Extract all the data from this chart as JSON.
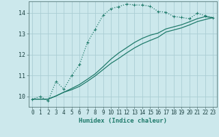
{
  "xlabel": "Humidex (Indice chaleur)",
  "bg_color": "#cce8ec",
  "grid_color": "#aacdd4",
  "line_color": "#1e7a6a",
  "xlim": [
    -0.5,
    23.5
  ],
  "ylim": [
    9.5,
    14.55
  ],
  "yticks": [
    10,
    11,
    12,
    13,
    14
  ],
  "xticks": [
    0,
    1,
    2,
    3,
    4,
    5,
    6,
    7,
    8,
    9,
    10,
    11,
    12,
    13,
    14,
    15,
    16,
    17,
    18,
    19,
    20,
    21,
    22,
    23
  ],
  "line1_x": [
    0,
    1,
    2,
    3,
    4,
    5,
    6,
    7,
    8,
    9,
    10,
    11,
    12,
    13,
    14,
    15,
    16,
    17,
    18,
    19,
    20,
    21,
    22,
    23
  ],
  "line1_y": [
    9.87,
    10.0,
    9.78,
    10.72,
    10.35,
    11.0,
    11.52,
    12.57,
    13.22,
    13.88,
    14.2,
    14.3,
    14.42,
    14.38,
    14.37,
    14.32,
    14.07,
    14.03,
    13.83,
    13.78,
    13.72,
    13.98,
    13.87,
    13.77
  ],
  "line2_x": [
    0,
    2,
    3,
    4,
    5,
    6,
    7,
    8,
    9,
    10,
    11,
    12,
    13,
    14,
    15,
    16,
    17,
    18,
    19,
    20,
    21,
    22,
    23
  ],
  "line2_y": [
    9.87,
    9.87,
    10.02,
    10.2,
    10.32,
    10.48,
    10.72,
    10.98,
    11.28,
    11.58,
    11.82,
    12.08,
    12.32,
    12.52,
    12.68,
    12.83,
    13.08,
    13.18,
    13.28,
    13.42,
    13.58,
    13.68,
    13.77
  ],
  "line3_x": [
    0,
    2,
    3,
    4,
    5,
    6,
    7,
    8,
    9,
    10,
    11,
    12,
    13,
    14,
    15,
    16,
    17,
    18,
    19,
    20,
    21,
    22,
    23
  ],
  "line3_y": [
    9.87,
    9.87,
    10.02,
    10.2,
    10.38,
    10.57,
    10.82,
    11.08,
    11.42,
    11.78,
    12.08,
    12.33,
    12.58,
    12.78,
    12.93,
    13.03,
    13.23,
    13.33,
    13.43,
    13.57,
    13.72,
    13.82,
    13.77
  ]
}
